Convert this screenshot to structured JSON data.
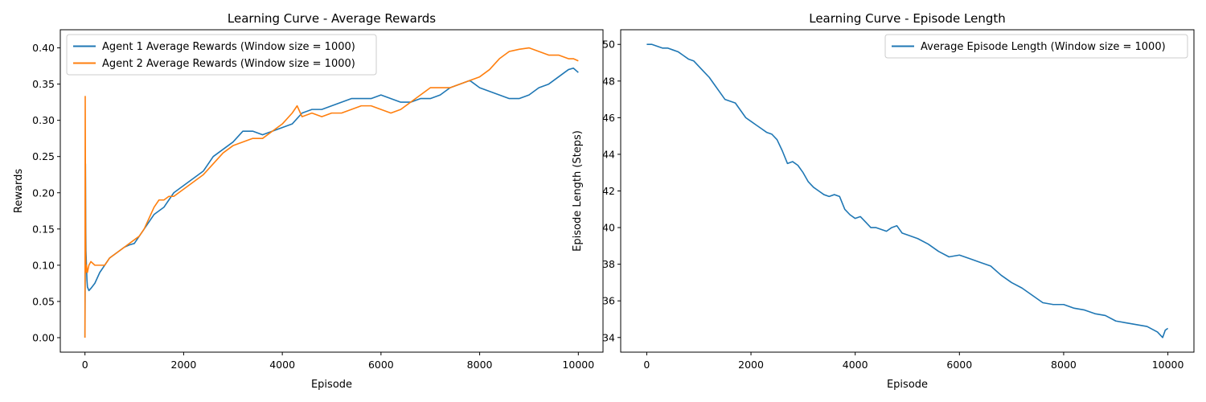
{
  "chart_data": [
    {
      "type": "line",
      "title": "Learning Curve - Average Rewards",
      "xlabel": "Episode",
      "ylabel": "Rewards",
      "xlim": [
        -500,
        10500
      ],
      "ylim": [
        -0.02,
        0.425
      ],
      "xticks": [
        0,
        2000,
        4000,
        6000,
        8000,
        10000
      ],
      "yticks": [
        0.0,
        0.05,
        0.1,
        0.15,
        0.2,
        0.25,
        0.3,
        0.35,
        0.4
      ],
      "ytick_labels": [
        "0.00",
        "0.05",
        "0.10",
        "0.15",
        "0.20",
        "0.25",
        "0.30",
        "0.35",
        "0.40"
      ],
      "legend_position": "top-left",
      "series": [
        {
          "name": "Agent 1 Average Rewards (Window size = 1000)",
          "color": "#1f77b4",
          "x": [
            0,
            5,
            10,
            15,
            20,
            30,
            40,
            50,
            80,
            120,
            200,
            300,
            400,
            500,
            600,
            700,
            800,
            900,
            1000,
            1100,
            1200,
            1300,
            1400,
            1500,
            1600,
            1700,
            1800,
            1900,
            2000,
            2200,
            2400,
            2600,
            2800,
            3000,
            3200,
            3400,
            3600,
            3800,
            4000,
            4200,
            4400,
            4600,
            4800,
            5000,
            5200,
            5400,
            5600,
            5800,
            6000,
            6200,
            6400,
            6600,
            6800,
            7000,
            7200,
            7400,
            7600,
            7800,
            8000,
            8200,
            8400,
            8600,
            8800,
            9000,
            9200,
            9400,
            9600,
            9800,
            9900,
            10000
          ],
          "y": [
            0.0,
            0.1,
            0.24,
            0.16,
            0.12,
            0.1,
            0.08,
            0.07,
            0.065,
            0.068,
            0.075,
            0.09,
            0.1,
            0.11,
            0.115,
            0.12,
            0.125,
            0.128,
            0.13,
            0.14,
            0.15,
            0.16,
            0.17,
            0.175,
            0.18,
            0.19,
            0.2,
            0.205,
            0.21,
            0.22,
            0.23,
            0.25,
            0.26,
            0.27,
            0.285,
            0.285,
            0.28,
            0.285,
            0.29,
            0.295,
            0.31,
            0.315,
            0.315,
            0.32,
            0.325,
            0.33,
            0.33,
            0.33,
            0.335,
            0.33,
            0.325,
            0.325,
            0.33,
            0.33,
            0.335,
            0.345,
            0.35,
            0.355,
            0.345,
            0.34,
            0.335,
            0.33,
            0.33,
            0.335,
            0.345,
            0.35,
            0.36,
            0.37,
            0.372,
            0.366
          ]
        },
        {
          "name": "Agent 2 Average Rewards (Window size = 1000)",
          "color": "#ff7f0e",
          "x": [
            0,
            5,
            10,
            15,
            20,
            30,
            40,
            50,
            80,
            120,
            200,
            300,
            400,
            500,
            600,
            700,
            800,
            900,
            1000,
            1100,
            1200,
            1300,
            1400,
            1500,
            1600,
            1700,
            1800,
            1900,
            2000,
            2200,
            2400,
            2600,
            2800,
            3000,
            3200,
            3400,
            3600,
            3800,
            4000,
            4200,
            4300,
            4400,
            4600,
            4800,
            5000,
            5200,
            5400,
            5600,
            5800,
            6000,
            6200,
            6400,
            6600,
            6800,
            7000,
            7200,
            7400,
            7600,
            7800,
            8000,
            8200,
            8400,
            8600,
            8800,
            9000,
            9200,
            9400,
            9600,
            9800,
            9900,
            10000
          ],
          "y": [
            0.0,
            0.333,
            0.2,
            0.1,
            0.09,
            0.1,
            0.095,
            0.09,
            0.1,
            0.105,
            0.1,
            0.1,
            0.1,
            0.11,
            0.115,
            0.12,
            0.125,
            0.13,
            0.135,
            0.14,
            0.15,
            0.165,
            0.18,
            0.19,
            0.19,
            0.195,
            0.195,
            0.2,
            0.205,
            0.215,
            0.225,
            0.24,
            0.255,
            0.265,
            0.27,
            0.275,
            0.275,
            0.285,
            0.295,
            0.31,
            0.32,
            0.305,
            0.31,
            0.305,
            0.31,
            0.31,
            0.315,
            0.32,
            0.32,
            0.315,
            0.31,
            0.315,
            0.325,
            0.335,
            0.345,
            0.345,
            0.345,
            0.35,
            0.355,
            0.36,
            0.37,
            0.385,
            0.395,
            0.398,
            0.4,
            0.395,
            0.39,
            0.39,
            0.385,
            0.385,
            0.382
          ]
        }
      ]
    },
    {
      "type": "line",
      "title": "Learning Curve - Episode Length",
      "xlabel": "Episode",
      "ylabel": "Episode Length (Steps)",
      "xlim": [
        -500,
        10500
      ],
      "ylim": [
        33.2,
        50.8
      ],
      "xticks": [
        0,
        2000,
        4000,
        6000,
        8000,
        10000
      ],
      "yticks": [
        34,
        36,
        38,
        40,
        42,
        44,
        46,
        48,
        50
      ],
      "ytick_labels": [
        "34",
        "36",
        "38",
        "40",
        "42",
        "44",
        "46",
        "48",
        "50"
      ],
      "legend_position": "top-right",
      "series": [
        {
          "name": "Average Episode Length (Window size = 1000)",
          "color": "#1f77b4",
          "x": [
            0,
            100,
            200,
            300,
            400,
            500,
            600,
            700,
            800,
            900,
            1000,
            1100,
            1200,
            1300,
            1400,
            1500,
            1600,
            1700,
            1800,
            1900,
            2000,
            2100,
            2200,
            2300,
            2400,
            2500,
            2600,
            2700,
            2800,
            2900,
            3000,
            3100,
            3200,
            3300,
            3400,
            3500,
            3600,
            3700,
            3800,
            3900,
            4000,
            4100,
            4200,
            4300,
            4400,
            4500,
            4600,
            4700,
            4800,
            4900,
            5000,
            5200,
            5400,
            5600,
            5800,
            6000,
            6200,
            6400,
            6600,
            6800,
            7000,
            7200,
            7400,
            7600,
            7800,
            8000,
            8200,
            8400,
            8600,
            8800,
            9000,
            9200,
            9400,
            9600,
            9800,
            9900,
            9950,
            10000
          ],
          "y": [
            50.0,
            50.0,
            49.9,
            49.8,
            49.8,
            49.7,
            49.6,
            49.4,
            49.2,
            49.1,
            48.8,
            48.5,
            48.2,
            47.8,
            47.4,
            47.0,
            46.9,
            46.8,
            46.4,
            46.0,
            45.8,
            45.6,
            45.4,
            45.2,
            45.1,
            44.8,
            44.2,
            43.5,
            43.6,
            43.4,
            43.0,
            42.5,
            42.2,
            42.0,
            41.8,
            41.7,
            41.8,
            41.7,
            41.0,
            40.7,
            40.5,
            40.6,
            40.3,
            40.0,
            40.0,
            39.9,
            39.8,
            40.0,
            40.1,
            39.7,
            39.6,
            39.4,
            39.1,
            38.7,
            38.4,
            38.5,
            38.3,
            38.1,
            37.9,
            37.4,
            37.0,
            36.7,
            36.3,
            35.9,
            35.8,
            35.8,
            35.6,
            35.5,
            35.3,
            35.2,
            34.9,
            34.8,
            34.7,
            34.6,
            34.3,
            34.0,
            34.4,
            34.5
          ]
        }
      ]
    }
  ]
}
